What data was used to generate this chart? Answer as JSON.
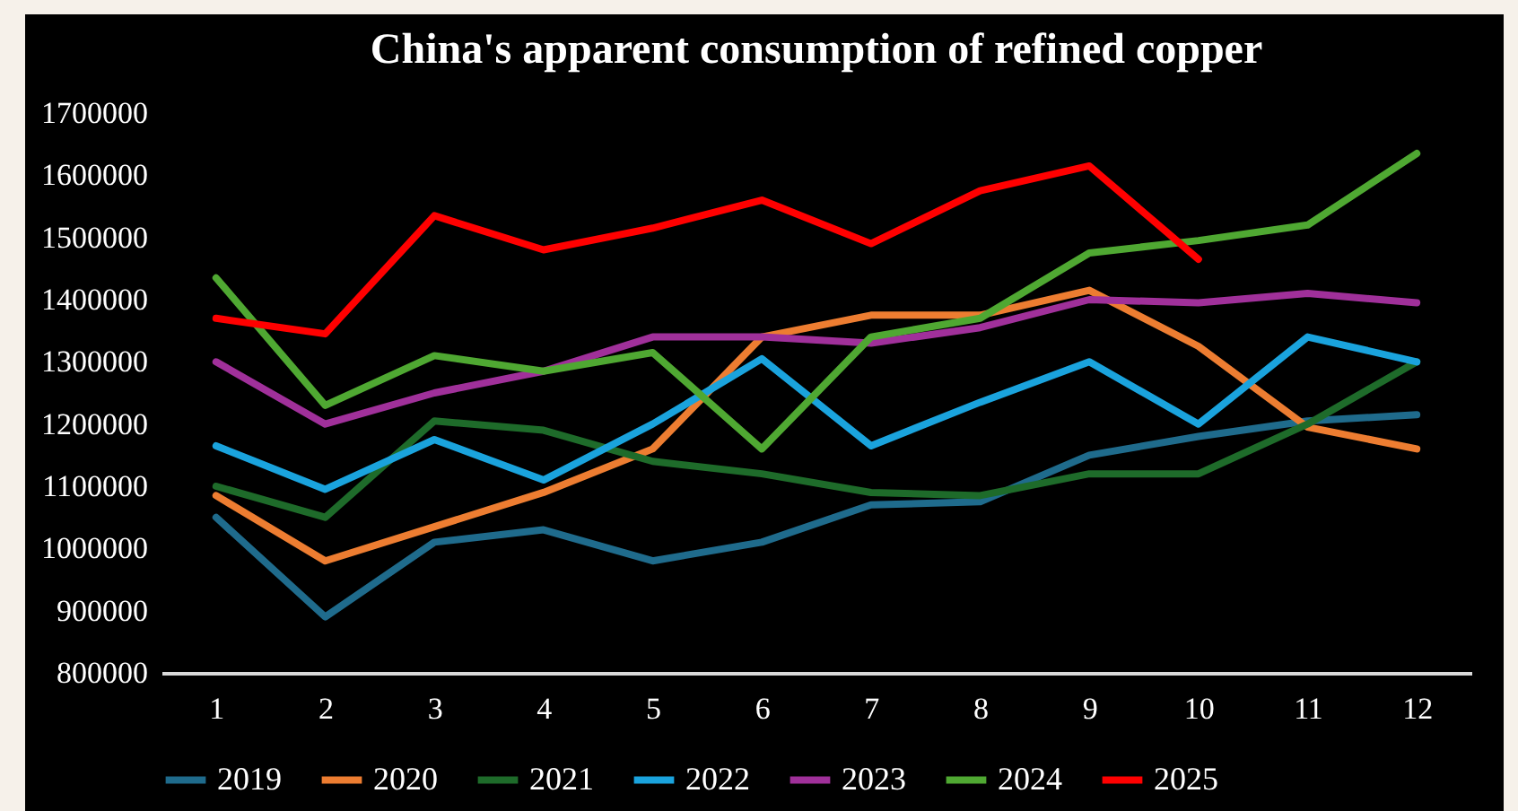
{
  "chart_data": {
    "type": "line",
    "title": "China's apparent consumption of refined copper",
    "x": [
      1,
      2,
      3,
      4,
      5,
      6,
      7,
      8,
      9,
      10,
      11,
      12
    ],
    "xlim": [
      0.5,
      12.5
    ],
    "xticks": [
      1,
      2,
      3,
      4,
      5,
      6,
      7,
      8,
      9,
      10,
      11,
      12
    ],
    "ylim": [
      800000,
      1700000
    ],
    "yticks": [
      800000,
      900000,
      1000000,
      1100000,
      1200000,
      1300000,
      1400000,
      1500000,
      1600000,
      1700000
    ],
    "grid": false,
    "legend": "bottom",
    "marker": "none",
    "line_style": "solid",
    "series": [
      {
        "name": "2019",
        "color": "#1f6b8c",
        "values": [
          1050000,
          890000,
          1010000,
          1030000,
          980000,
          1010000,
          1070000,
          1075000,
          1150000,
          1180000,
          1205000,
          1215000
        ]
      },
      {
        "name": "2020",
        "color": "#ed7d31",
        "values": [
          1085000,
          980000,
          1035000,
          1090000,
          1160000,
          1340000,
          1375000,
          1375000,
          1415000,
          1325000,
          1195000,
          1160000
        ]
      },
      {
        "name": "2021",
        "color": "#1e6b2a",
        "values": [
          1100000,
          1050000,
          1205000,
          1190000,
          1140000,
          1120000,
          1090000,
          1085000,
          1120000,
          1120000,
          1200000,
          1300000
        ]
      },
      {
        "name": "2022",
        "color": "#1aa3dd",
        "values": [
          1165000,
          1095000,
          1175000,
          1110000,
          1200000,
          1305000,
          1165000,
          1235000,
          1300000,
          1200000,
          1340000,
          1300000
        ]
      },
      {
        "name": "2023",
        "color": "#a0309a",
        "values": [
          1300000,
          1200000,
          1250000,
          1285000,
          1340000,
          1340000,
          1330000,
          1355000,
          1400000,
          1395000,
          1410000,
          1395000
        ]
      },
      {
        "name": "2024",
        "color": "#4fa832",
        "values": [
          1435000,
          1230000,
          1310000,
          1285000,
          1315000,
          1160000,
          1340000,
          1370000,
          1475000,
          1495000,
          1520000,
          1635000
        ]
      },
      {
        "name": "2025",
        "color": "#ff0000",
        "values": [
          1370000,
          1345000,
          1535000,
          1480000,
          1515000,
          1560000,
          1490000,
          1575000,
          1615000,
          1465000,
          null,
          null
        ]
      }
    ]
  }
}
